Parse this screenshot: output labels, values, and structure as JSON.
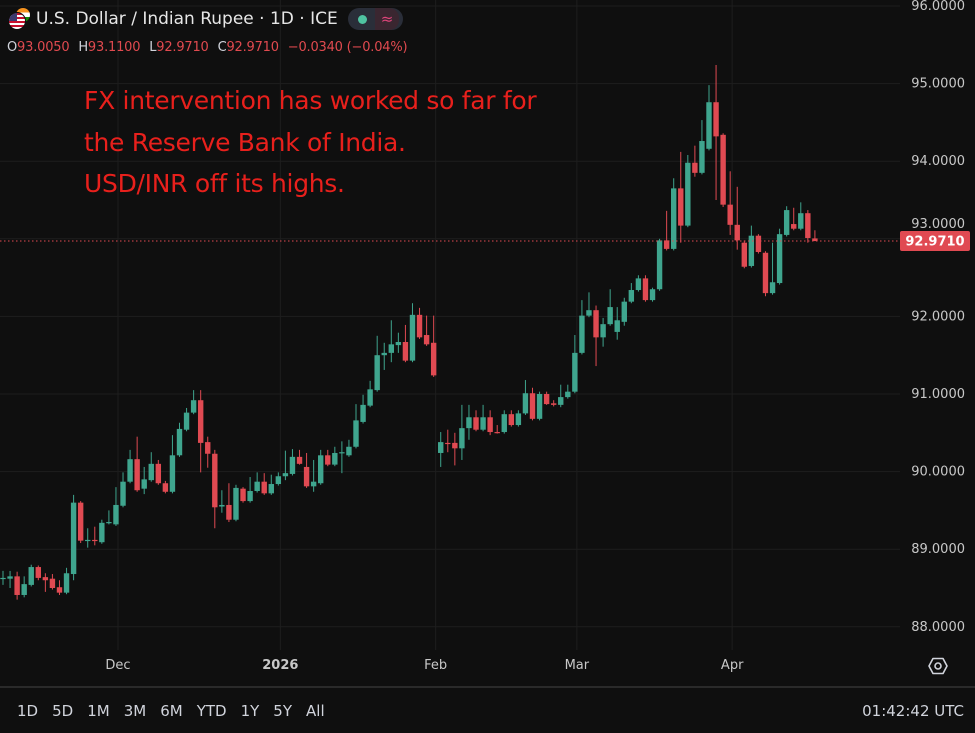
{
  "header": {
    "title": "U.S. Dollar / Indian Rupee · 1D · ICE",
    "status_icon": "market-open-dot",
    "status_color": "#4fc3a1",
    "indicator_icon": "approx-wave-icon",
    "ohlc": {
      "o_label": "O",
      "o": "93.0050",
      "h_label": "H",
      "h": "93.1100",
      "l_label": "L",
      "l": "92.9710",
      "c_label": "C",
      "c": "92.9710",
      "change": "−0.0340 (−0.04%)"
    }
  },
  "annotation": {
    "lines": [
      "FX intervention has worked so far for",
      "the Reserve Bank of India.",
      "USD/INR off its highs."
    ],
    "color": "#e8201c"
  },
  "chart_data": {
    "type": "candlestick",
    "symbol": "USD/INR",
    "interval": "1D",
    "ylim": [
      87.7,
      96.0
    ],
    "y_ticks": [
      "96.0000",
      "95.0000",
      "94.0000",
      "93.0000",
      "92.0000",
      "91.0000",
      "90.0000",
      "89.0000",
      "88.0000"
    ],
    "y_tick_values": [
      96,
      95,
      94,
      93,
      92,
      91,
      90,
      89,
      88
    ],
    "x_ticks": [
      {
        "label": "Dec",
        "date": "2025-12-01"
      },
      {
        "label": "2026",
        "date": "2026-01-01"
      },
      {
        "label": "Feb",
        "date": "2026-02-02"
      },
      {
        "label": "Mar",
        "date": "2026-03-02"
      },
      {
        "label": "Apr",
        "date": "2026-04-01"
      }
    ],
    "last_price": 92.971,
    "last_price_label": "92.9710",
    "grid": true,
    "up_color": "#3fa58e",
    "down_color": "#e04a52",
    "columns": [
      "date",
      "open",
      "high",
      "low",
      "close"
    ],
    "candles": [
      [
        "2025-11-07",
        88.63,
        88.72,
        88.54,
        88.63
      ],
      [
        "2025-11-10",
        88.62,
        88.72,
        88.5,
        88.65
      ],
      [
        "2025-11-11",
        88.65,
        88.71,
        88.35,
        88.41
      ],
      [
        "2025-11-12",
        88.41,
        88.65,
        88.38,
        88.55
      ],
      [
        "2025-11-13",
        88.54,
        88.8,
        88.52,
        88.77
      ],
      [
        "2025-11-14",
        88.77,
        88.79,
        88.6,
        88.63
      ],
      [
        "2025-11-17",
        88.64,
        88.69,
        88.45,
        88.6
      ],
      [
        "2025-11-18",
        88.62,
        88.68,
        88.48,
        88.5
      ],
      [
        "2025-11-19",
        88.51,
        88.6,
        88.41,
        88.44
      ],
      [
        "2025-11-20",
        88.44,
        88.76,
        88.42,
        88.69
      ],
      [
        "2025-11-21",
        88.68,
        89.7,
        88.6,
        89.6
      ],
      [
        "2025-11-24",
        89.6,
        89.62,
        89.08,
        89.11
      ],
      [
        "2025-11-25",
        89.11,
        89.27,
        89.02,
        89.12
      ],
      [
        "2025-11-26",
        89.12,
        89.29,
        89.05,
        89.11
      ],
      [
        "2025-11-27",
        89.09,
        89.38,
        89.07,
        89.34
      ],
      [
        "2025-11-28",
        89.34,
        89.5,
        89.32,
        89.35
      ],
      [
        "2025-12-01",
        89.32,
        89.8,
        89.3,
        89.57
      ],
      [
        "2025-12-02",
        89.56,
        89.99,
        89.54,
        89.87
      ],
      [
        "2025-12-03",
        89.87,
        90.28,
        89.85,
        90.16
      ],
      [
        "2025-12-04",
        90.16,
        90.45,
        89.74,
        89.76
      ],
      [
        "2025-12-05",
        89.78,
        90.06,
        89.71,
        89.9
      ],
      [
        "2025-12-08",
        89.89,
        90.25,
        89.87,
        90.1
      ],
      [
        "2025-12-09",
        90.1,
        90.15,
        89.83,
        89.85
      ],
      [
        "2025-12-10",
        89.85,
        89.88,
        89.72,
        89.74
      ],
      [
        "2025-12-11",
        89.74,
        90.47,
        89.72,
        90.21
      ],
      [
        "2025-12-12",
        90.21,
        90.63,
        90.19,
        90.55
      ],
      [
        "2025-12-15",
        90.54,
        90.82,
        90.52,
        90.76
      ],
      [
        "2025-12-16",
        90.76,
        91.05,
        90.74,
        90.92
      ],
      [
        "2025-12-17",
        90.92,
        91.05,
        89.99,
        90.37
      ],
      [
        "2025-12-18",
        90.38,
        90.45,
        90.05,
        90.23
      ],
      [
        "2025-12-19",
        90.23,
        90.28,
        89.27,
        89.54
      ],
      [
        "2025-12-22",
        89.55,
        89.76,
        89.47,
        89.57
      ],
      [
        "2025-12-23",
        89.57,
        89.85,
        89.35,
        89.38
      ],
      [
        "2025-12-24",
        89.38,
        89.83,
        89.36,
        89.79
      ],
      [
        "2025-12-25",
        89.78,
        89.8,
        89.6,
        89.62
      ],
      [
        "2025-12-26",
        89.62,
        89.93,
        89.6,
        89.75
      ],
      [
        "2025-12-29",
        89.75,
        89.99,
        89.73,
        89.87
      ],
      [
        "2025-12-30",
        89.87,
        89.98,
        89.7,
        89.72
      ],
      [
        "2025-12-31",
        89.72,
        89.96,
        89.7,
        89.84
      ],
      [
        "2026-01-01",
        89.84,
        89.99,
        89.82,
        89.94
      ],
      [
        "2026-01-02",
        89.94,
        90.27,
        89.89,
        89.98
      ],
      [
        "2026-01-05",
        89.97,
        90.29,
        89.95,
        90.19
      ],
      [
        "2026-01-06",
        90.19,
        90.28,
        90.09,
        90.1
      ],
      [
        "2026-01-07",
        90.06,
        90.24,
        89.79,
        89.81
      ],
      [
        "2026-01-08",
        89.81,
        90.15,
        89.74,
        89.87
      ],
      [
        "2026-01-09",
        89.85,
        90.28,
        89.83,
        90.21
      ],
      [
        "2026-01-12",
        90.21,
        90.28,
        90.07,
        90.09
      ],
      [
        "2026-01-13",
        90.09,
        90.32,
        90.07,
        90.24
      ],
      [
        "2026-01-14",
        90.24,
        90.39,
        89.98,
        90.25
      ],
      [
        "2026-01-15",
        90.21,
        90.41,
        90.19,
        90.32
      ],
      [
        "2026-01-16",
        90.32,
        90.87,
        90.3,
        90.66
      ],
      [
        "2026-01-19",
        90.64,
        90.99,
        90.62,
        90.86
      ],
      [
        "2026-01-20",
        90.85,
        91.17,
        90.83,
        91.06
      ],
      [
        "2026-01-21",
        91.05,
        91.75,
        91.03,
        91.5
      ],
      [
        "2026-01-22",
        91.5,
        91.66,
        91.31,
        91.53
      ],
      [
        "2026-01-23",
        91.53,
        91.95,
        91.41,
        91.64
      ],
      [
        "2026-01-26",
        91.63,
        91.79,
        91.53,
        91.67
      ],
      [
        "2026-01-27",
        91.67,
        91.89,
        91.41,
        91.43
      ],
      [
        "2026-01-28",
        91.43,
        92.17,
        91.41,
        92.02
      ],
      [
        "2026-01-29",
        92.02,
        92.11,
        91.71,
        91.73
      ],
      [
        "2026-01-30",
        91.76,
        92.01,
        91.62,
        91.64
      ],
      [
        "2026-02-02",
        91.66,
        92.01,
        91.22,
        91.24
      ],
      [
        "2026-02-03",
        90.24,
        90.51,
        90.06,
        90.38
      ],
      [
        "2026-02-04",
        90.37,
        90.54,
        90.25,
        90.36
      ],
      [
        "2026-02-05",
        90.37,
        90.5,
        90.08,
        90.3
      ],
      [
        "2026-02-06",
        90.3,
        90.86,
        90.15,
        90.56
      ],
      [
        "2026-02-09",
        90.56,
        90.86,
        90.41,
        90.7
      ],
      [
        "2026-02-10",
        90.7,
        90.79,
        90.52,
        90.54
      ],
      [
        "2026-02-11",
        90.54,
        90.86,
        90.52,
        90.7
      ],
      [
        "2026-02-12",
        90.7,
        90.79,
        90.47,
        90.51
      ],
      [
        "2026-02-13",
        90.51,
        90.6,
        90.49,
        90.5
      ],
      [
        "2026-02-16",
        90.51,
        90.79,
        90.49,
        90.74
      ],
      [
        "2026-02-17",
        90.74,
        90.79,
        90.58,
        90.6
      ],
      [
        "2026-02-18",
        90.6,
        90.79,
        90.58,
        90.75
      ],
      [
        "2026-02-19",
        90.75,
        91.18,
        90.73,
        91.01
      ],
      [
        "2026-02-20",
        91.01,
        91.08,
        90.66,
        90.68
      ],
      [
        "2026-02-23",
        90.68,
        91.03,
        90.66,
        91.0
      ],
      [
        "2026-02-24",
        91.0,
        91.03,
        90.86,
        90.87
      ],
      [
        "2026-02-25",
        90.88,
        90.92,
        90.84,
        90.86
      ],
      [
        "2026-02-26",
        90.86,
        91.12,
        90.83,
        90.96
      ],
      [
        "2026-02-27",
        90.96,
        91.12,
        90.94,
        91.03
      ],
      [
        "2026-03-02",
        91.03,
        91.76,
        91.01,
        91.53
      ],
      [
        "2026-03-03",
        91.53,
        92.21,
        91.51,
        92.01
      ],
      [
        "2026-03-04",
        92.01,
        92.31,
        91.99,
        92.08
      ],
      [
        "2026-03-05",
        92.08,
        92.14,
        91.36,
        91.73
      ],
      [
        "2026-03-06",
        91.73,
        91.98,
        91.61,
        91.9
      ],
      [
        "2026-03-09",
        91.9,
        92.35,
        91.88,
        92.12
      ],
      [
        "2026-03-10",
        91.8,
        92.12,
        91.7,
        91.95
      ],
      [
        "2026-03-11",
        91.93,
        92.24,
        91.88,
        92.19
      ],
      [
        "2026-03-12",
        92.19,
        92.43,
        92.17,
        92.34
      ],
      [
        "2026-03-13",
        92.34,
        92.53,
        92.32,
        92.49
      ],
      [
        "2026-03-16",
        92.49,
        92.53,
        92.19,
        92.21
      ],
      [
        "2026-03-17",
        92.21,
        92.37,
        92.19,
        92.35
      ],
      [
        "2026-03-18",
        92.35,
        93.0,
        92.33,
        92.98
      ],
      [
        "2026-03-19",
        92.98,
        93.36,
        92.85,
        92.87
      ],
      [
        "2026-03-20",
        92.87,
        93.78,
        92.85,
        93.65
      ],
      [
        "2026-03-23",
        93.65,
        94.12,
        92.95,
        93.17
      ],
      [
        "2026-03-24",
        93.17,
        94.08,
        93.15,
        93.98
      ],
      [
        "2026-03-25",
        93.98,
        94.2,
        93.8,
        93.85
      ],
      [
        "2026-03-26",
        93.85,
        94.53,
        93.83,
        94.26
      ],
      [
        "2026-03-27",
        94.16,
        94.98,
        94.14,
        94.76
      ],
      [
        "2026-03-30",
        94.76,
        95.24,
        93.5,
        94.32
      ],
      [
        "2026-03-31",
        94.34,
        94.36,
        93.41,
        93.44
      ],
      [
        "2026-04-01",
        93.44,
        93.87,
        93.05,
        93.18
      ],
      [
        "2026-04-02",
        93.18,
        93.67,
        92.86,
        92.98
      ],
      [
        "2026-04-03",
        92.95,
        92.98,
        92.62,
        92.64
      ],
      [
        "2026-04-06",
        92.65,
        93.17,
        92.63,
        93.04
      ],
      [
        "2026-04-07",
        93.04,
        93.06,
        92.81,
        92.83
      ],
      [
        "2026-04-08",
        92.82,
        92.84,
        92.26,
        92.3
      ],
      [
        "2026-04-09",
        92.3,
        92.95,
        92.28,
        92.44
      ],
      [
        "2026-04-10",
        92.43,
        93.13,
        92.41,
        93.06
      ],
      [
        "2026-04-13",
        93.05,
        93.42,
        93.03,
        93.37
      ],
      [
        "2026-04-14",
        93.19,
        93.4,
        93.11,
        93.13
      ],
      [
        "2026-04-15",
        93.13,
        93.47,
        93.11,
        93.33
      ],
      [
        "2026-04-16",
        93.33,
        93.37,
        92.95,
        93.01
      ],
      [
        "2026-04-17",
        93.005,
        93.11,
        92.971,
        92.971
      ]
    ]
  },
  "toolbar": {
    "ranges": [
      "1D",
      "5D",
      "1M",
      "3M",
      "6M",
      "YTD",
      "1Y",
      "5Y",
      "All"
    ],
    "clock": "01:42:42 UTC",
    "settings_icon": "gear-icon"
  }
}
